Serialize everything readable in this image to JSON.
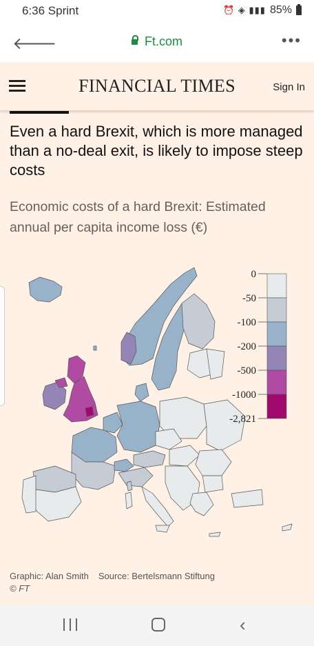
{
  "status_bar": {
    "time": "6:36 Sprint",
    "battery": "85%"
  },
  "browser": {
    "url": "Ft.com"
  },
  "ft_header": {
    "brand": "FINANCIAL TIMES",
    "sign_in": "Sign In"
  },
  "article": {
    "headline": "Even a hard Brexit, which is more managed than a no-deal exit, is likely to impose steep costs",
    "subtitle": "Economic costs of a hard Brexit: Estimated annual per capita income loss (€)"
  },
  "legend": {
    "labels": [
      "0",
      "-50",
      "-100",
      "-200",
      "-500",
      "-1000",
      "-2,821"
    ],
    "colors": [
      "#e8ebec",
      "#c5ccd6",
      "#98b2c9",
      "#9385b5",
      "#b04aa2",
      "#a0096e"
    ]
  },
  "credits": {
    "graphic": "Graphic: Alan Smith",
    "source": "Source: Bertelsmann Stiftung",
    "copyright": "© FT"
  }
}
